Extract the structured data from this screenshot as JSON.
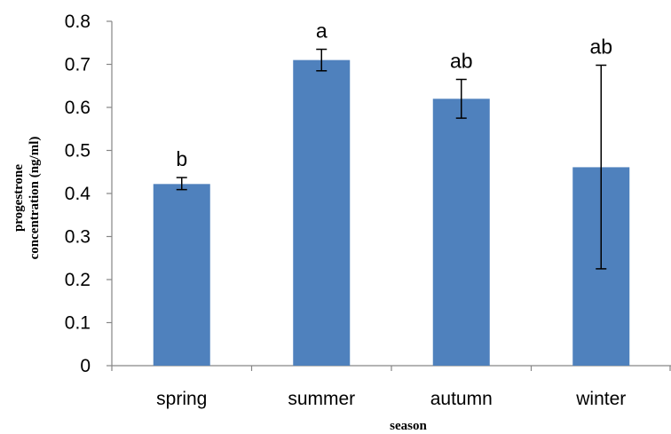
{
  "chart_data": {
    "type": "bar",
    "categories": [
      "spring",
      "summer",
      "autumn",
      "winter"
    ],
    "values": [
      0.422,
      0.71,
      0.62,
      0.461
    ],
    "error_low": [
      0.409,
      0.685,
      0.575,
      0.225
    ],
    "error_high": [
      0.437,
      0.735,
      0.665,
      0.698
    ],
    "significance_labels": [
      "b",
      "a",
      "ab",
      "ab"
    ],
    "xlabel": "season",
    "ylabel_lines": [
      "progestrone",
      "concentration (ng/ml)"
    ],
    "ylim": [
      0,
      0.8
    ],
    "yticks": [
      "0",
      "0.1",
      "0.2",
      "0.3",
      "0.4",
      "0.5",
      "0.6",
      "0.7",
      "0.8"
    ],
    "grid": false,
    "legend": "none",
    "bar_color": "#4f81bd"
  }
}
